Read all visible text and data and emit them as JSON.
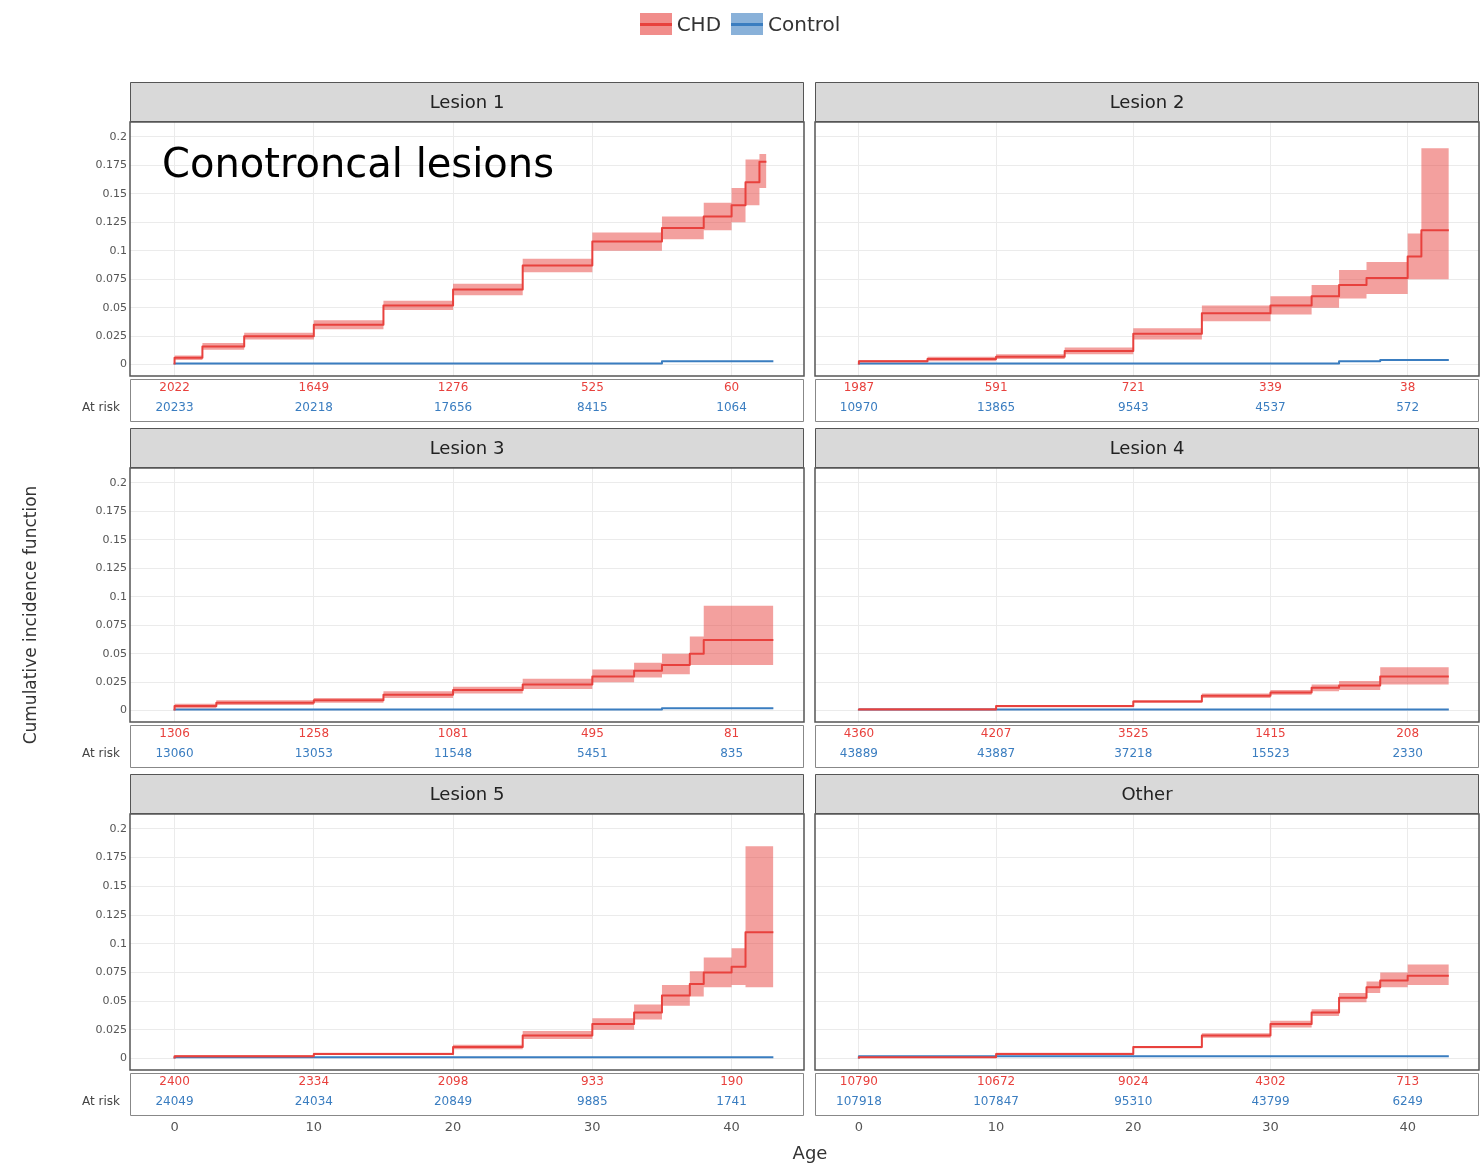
{
  "chart_data": [
    {
      "type": "step",
      "title": "Lesion 1",
      "legend": "top",
      "grid": true,
      "tick_labels": "y",
      "xlim": [
        -3.2,
        45.2
      ],
      "ylim": [
        -0.01,
        0.213
      ],
      "xticks": [
        0,
        10,
        20,
        30,
        40
      ],
      "yticks": [
        0,
        0.025,
        0.05,
        0.075,
        0.1,
        0.125,
        0.15,
        0.175,
        0.2
      ],
      "series": [
        {
          "name": "CHD",
          "color": "#e8413d",
          "x": [
            0,
            2,
            5,
            10,
            15,
            20,
            25,
            30,
            35,
            38,
            40,
            41,
            42,
            42.5
          ],
          "values": [
            0,
            0.006,
            0.016,
            0.025,
            0.035,
            0.052,
            0.066,
            0.087,
            0.108,
            0.12,
            0.13,
            0.14,
            0.16,
            0.178
          ],
          "lower": [
            0,
            0.004,
            0.013,
            0.022,
            0.031,
            0.048,
            0.061,
            0.081,
            0.1,
            0.11,
            0.118,
            0.125,
            0.14,
            0.155
          ],
          "upper": [
            0,
            0.008,
            0.019,
            0.028,
            0.039,
            0.056,
            0.071,
            0.093,
            0.116,
            0.13,
            0.142,
            0.155,
            0.18,
            0.185
          ]
        },
        {
          "name": "Control",
          "color": "#3a7dc0",
          "x": [
            0,
            30,
            35,
            40,
            43
          ],
          "values": [
            0,
            0.001,
            0.001,
            0.003,
            0.003
          ]
        }
      ],
      "annotations": [
        "2022",
        "1649",
        "1276",
        "525",
        "60",
        "20233",
        "20218",
        "17656",
        "8415",
        "1064",
        "At risk",
        "Conotroncal lesions"
      ]
    },
    {
      "type": "step",
      "title": "Lesion 2",
      "grid": true,
      "tick_labels": false,
      "xlim": [
        -3.2,
        45.2
      ],
      "ylim": [
        -0.01,
        0.213
      ],
      "xticks": [
        0,
        10,
        20,
        30,
        40
      ],
      "yticks": [
        0,
        0.025,
        0.05,
        0.075,
        0.1,
        0.125,
        0.15,
        0.175,
        0.2
      ],
      "series": [
        {
          "color": "#e8413d",
          "x": [
            0,
            5,
            10,
            15,
            20,
            25,
            30,
            33,
            35,
            37,
            40,
            41,
            42,
            43
          ],
          "values": [
            0,
            0.003,
            0.005,
            0.007,
            0.012,
            0.027,
            0.045,
            0.052,
            0.06,
            0.07,
            0.076,
            0.095,
            0.118,
            0.118
          ],
          "lower": [
            0,
            0.002,
            0.003,
            0.005,
            0.009,
            0.022,
            0.038,
            0.044,
            0.05,
            0.058,
            0.062,
            0.075,
            0.075,
            0.075
          ],
          "upper": [
            0,
            0.004,
            0.007,
            0.009,
            0.015,
            0.032,
            0.052,
            0.06,
            0.07,
            0.083,
            0.09,
            0.115,
            0.19,
            0.19
          ]
        },
        {
          "color": "#3a7dc0",
          "x": [
            0,
            35,
            38,
            40,
            43
          ],
          "values": [
            0,
            0.001,
            0.003,
            0.004,
            0.004
          ]
        }
      ],
      "annotations": [
        "1987",
        "591",
        "721",
        "339",
        "38",
        "10970",
        "13865",
        "9543",
        "4537",
        "572"
      ]
    },
    {
      "type": "step",
      "title": "Lesion 3",
      "ylabel": "Cumulative incidence function",
      "grid": true,
      "tick_labels": "y",
      "xlim": [
        -3.2,
        45.2
      ],
      "ylim": [
        -0.01,
        0.213
      ],
      "xticks": [
        0,
        10,
        20,
        30,
        40
      ],
      "yticks": [
        0,
        0.025,
        0.05,
        0.075,
        0.1,
        0.125,
        0.15,
        0.175,
        0.2
      ],
      "series": [
        {
          "color": "#e8413d",
          "x": [
            0,
            3,
            10,
            15,
            20,
            25,
            30,
            33,
            35,
            37,
            38,
            40,
            43
          ],
          "values": [
            0,
            0.004,
            0.007,
            0.009,
            0.014,
            0.018,
            0.023,
            0.03,
            0.035,
            0.04,
            0.05,
            0.062,
            0.062
          ],
          "lower": [
            0,
            0.002,
            0.005,
            0.007,
            0.011,
            0.015,
            0.019,
            0.025,
            0.029,
            0.032,
            0.04,
            0.04,
            0.04
          ],
          "upper": [
            0,
            0.006,
            0.009,
            0.011,
            0.017,
            0.021,
            0.028,
            0.036,
            0.042,
            0.05,
            0.065,
            0.092,
            0.092
          ]
        },
        {
          "color": "#3a7dc0",
          "x": [
            0,
            35,
            40,
            43
          ],
          "values": [
            0,
            0.001,
            0.002,
            0.002
          ]
        }
      ],
      "annotations": [
        "1306",
        "1258",
        "1081",
        "495",
        "81",
        "13060",
        "13053",
        "11548",
        "5451",
        "835",
        "At risk"
      ]
    },
    {
      "type": "step",
      "title": "Lesion 4",
      "grid": true,
      "tick_labels": false,
      "xlim": [
        -3.2,
        45.2
      ],
      "ylim": [
        -0.01,
        0.213
      ],
      "xticks": [
        0,
        10,
        20,
        30,
        40
      ],
      "yticks": [
        0,
        0.025,
        0.05,
        0.075,
        0.1,
        0.125,
        0.15,
        0.175,
        0.2
      ],
      "series": [
        {
          "color": "#e8413d",
          "x": [
            0,
            10,
            20,
            25,
            30,
            33,
            35,
            38,
            40,
            43
          ],
          "values": [
            0,
            0.001,
            0.004,
            0.008,
            0.013,
            0.016,
            0.02,
            0.022,
            0.03,
            0.03
          ],
          "lower": [
            0,
            0.0005,
            0.003,
            0.007,
            0.011,
            0.014,
            0.017,
            0.018,
            0.023,
            0.023
          ],
          "upper": [
            0,
            0.002,
            0.005,
            0.009,
            0.015,
            0.018,
            0.023,
            0.026,
            0.038,
            0.038
          ]
        },
        {
          "color": "#3a7dc0",
          "x": [
            0,
            40,
            43
          ],
          "values": [
            0,
            0.001,
            0.001
          ]
        }
      ],
      "annotations": [
        "4360",
        "4207",
        "3525",
        "1415",
        "208",
        "43889",
        "43887",
        "37218",
        "15523",
        "2330"
      ]
    },
    {
      "type": "step",
      "title": "Lesion 5",
      "grid": true,
      "xlim": [
        -3.2,
        45.2
      ],
      "ylim": [
        -0.01,
        0.213
      ],
      "xticks": [
        0,
        10,
        20,
        30,
        40
      ],
      "yticks": [
        0,
        0.025,
        0.05,
        0.075,
        0.1,
        0.125,
        0.15,
        0.175,
        0.2
      ],
      "series": [
        {
          "color": "#e8413d",
          "x": [
            0,
            10,
            20,
            25,
            30,
            33,
            35,
            37,
            38,
            40,
            41,
            42,
            43
          ],
          "values": [
            0,
            0.002,
            0.004,
            0.01,
            0.02,
            0.03,
            0.04,
            0.055,
            0.065,
            0.075,
            0.08,
            0.11,
            0.11
          ],
          "lower": [
            0,
            0.001,
            0.003,
            0.008,
            0.017,
            0.025,
            0.034,
            0.046,
            0.054,
            0.062,
            0.064,
            0.062,
            0.062
          ],
          "upper": [
            0,
            0.003,
            0.005,
            0.012,
            0.024,
            0.035,
            0.047,
            0.064,
            0.076,
            0.088,
            0.096,
            0.185,
            0.185
          ]
        },
        {
          "color": "#3a7dc0",
          "x": [
            0,
            43
          ],
          "values": [
            0,
            0.001
          ]
        }
      ],
      "annotations": [
        "2400",
        "2334",
        "2098",
        "933",
        "190",
        "24049",
        "24034",
        "20849",
        "9885",
        "1741",
        "At risk"
      ]
    },
    {
      "type": "step",
      "title": "Other",
      "xlabel": "Age",
      "grid": true,
      "tick_labels": "x",
      "xlim": [
        -3.2,
        45.2
      ],
      "ylim": [
        -0.01,
        0.213
      ],
      "xticks": [
        0,
        10,
        20,
        30,
        40
      ],
      "yticks": [
        0,
        0.025,
        0.05,
        0.075,
        0.1,
        0.125,
        0.15,
        0.175,
        0.2
      ],
      "series": [
        {
          "color": "#e8413d",
          "x": [
            0,
            10,
            20,
            25,
            30,
            33,
            35,
            37,
            38,
            40,
            41,
            43
          ],
          "values": [
            0,
            0.001,
            0.004,
            0.01,
            0.02,
            0.03,
            0.04,
            0.053,
            0.062,
            0.068,
            0.072,
            0.072
          ],
          "lower": [
            0,
            0.0008,
            0.003,
            0.009,
            0.018,
            0.027,
            0.037,
            0.049,
            0.057,
            0.062,
            0.064,
            0.064
          ],
          "upper": [
            0,
            0.0012,
            0.005,
            0.011,
            0.022,
            0.033,
            0.043,
            0.057,
            0.067,
            0.075,
            0.082,
            0.082
          ]
        },
        {
          "color": "#3a7dc0",
          "x": [
            0,
            40,
            43
          ],
          "values": [
            0,
            0.002,
            0.002
          ]
        }
      ],
      "annotations": [
        "10790",
        "10672",
        "9024",
        "4302",
        "713",
        "107918",
        "107847",
        "95310",
        "43799",
        "6249"
      ]
    }
  ]
}
